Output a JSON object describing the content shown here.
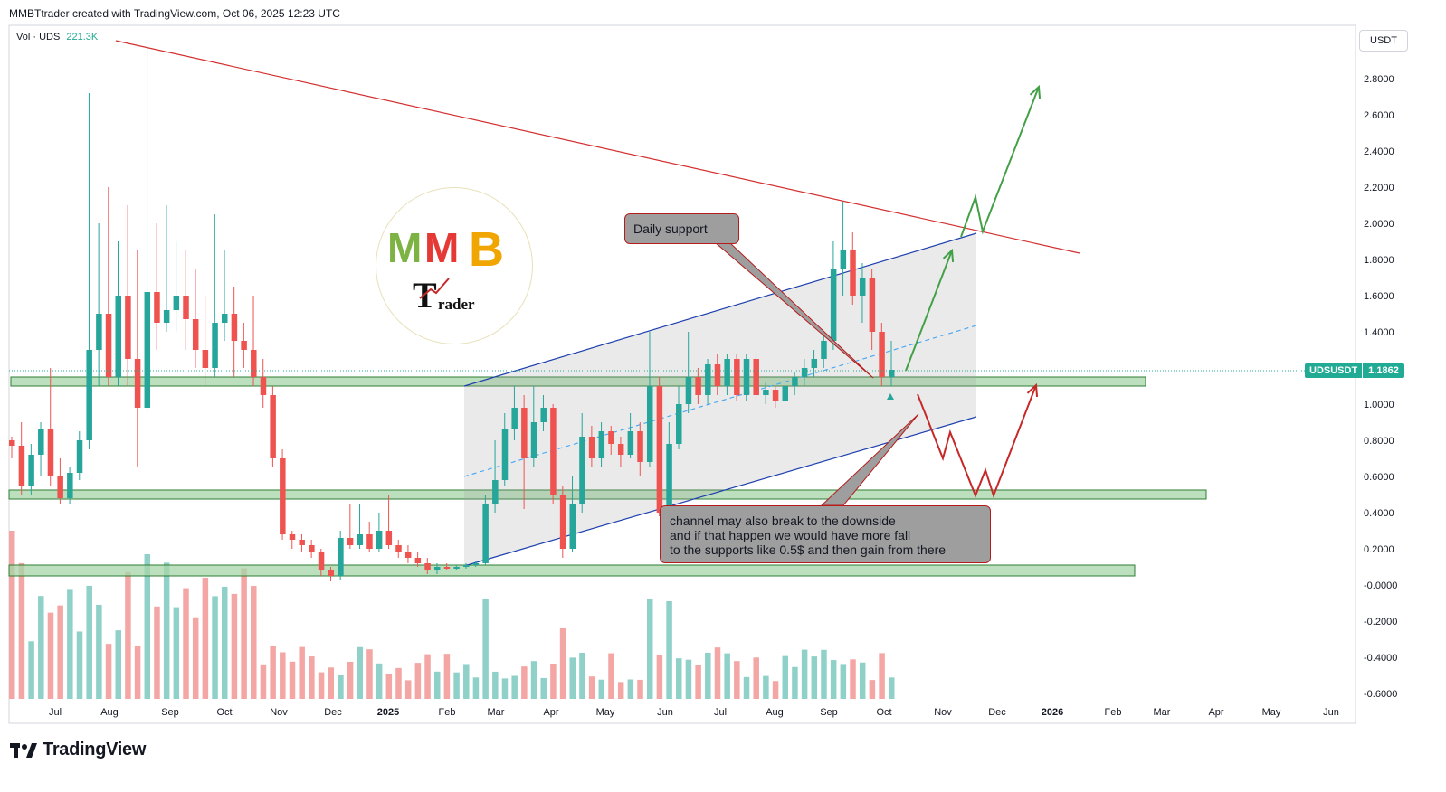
{
  "header": {
    "text": "MMBTtrader created with TradingView.com, Oct 06, 2025 12:23 UTC"
  },
  "volume_legend": {
    "name": "Vol · UDS",
    "value": "221.3K"
  },
  "currency": "USDT",
  "price_tag": {
    "symbol": "UDSUSDT",
    "value": "1.1862"
  },
  "annotations": {
    "daily_support": "Daily support",
    "channel_note": "channel may also break to the downside\nand if that happen we would have more fall\nto the supports like 0.5$ and then gain from there"
  },
  "logo": {
    "letters": "MMB",
    "trader_text": "rader",
    "trader_initial": "T"
  },
  "footer": {
    "brand": "TradingView"
  },
  "colors": {
    "up": "#26a69a",
    "down": "#ef5350",
    "up_vol": "#8fd1c9",
    "down_vol": "#f3a6a4",
    "zone_fill": "#a5d6a7",
    "zone_stroke": "#2e7d32",
    "trendline_red": "#d32f2f",
    "channel_blue": "#1e40af",
    "arrow_green": "#43a047",
    "arrow_red": "#c62828",
    "price_line": "#22ab94"
  },
  "chart_data": {
    "type": "candlestick",
    "symbol": "UDSUSDT",
    "timeframe": "weekly (approx.)",
    "y_axis": {
      "ticks": [
        "2.8000",
        "2.6000",
        "2.4000",
        "2.2000",
        "2.0000",
        "1.8000",
        "1.6000",
        "1.4000",
        "1.2000",
        "1.0000",
        "0.8000",
        "0.6000",
        "0.4000",
        "0.2000",
        "-0.0000",
        "-0.2000",
        "-0.4000",
        "-0.6000"
      ],
      "ylim": [
        -0.65,
        2.95
      ]
    },
    "x_axis": {
      "ticks": [
        "Jul",
        "Aug",
        "Sep",
        "Oct",
        "Nov",
        "Dec",
        "2025",
        "Feb",
        "Mar",
        "Apr",
        "May",
        "Jun",
        "Jul",
        "Aug",
        "Sep",
        "Oct",
        "Nov",
        "Dec",
        "2026",
        "Feb",
        "Mar",
        "Apr",
        "May",
        "Jun"
      ],
      "bold_ticks": [
        "2025",
        "2026"
      ]
    },
    "last_price": 1.1862,
    "candles_approx": [
      [
        0.8,
        0.77,
        0.82,
        0.7
      ],
      [
        0.77,
        0.55,
        0.9,
        0.5
      ],
      [
        0.55,
        0.72,
        0.78,
        0.5
      ],
      [
        0.72,
        0.86,
        0.9,
        0.6
      ],
      [
        0.86,
        0.6,
        1.2,
        0.55
      ],
      [
        0.6,
        0.48,
        0.7,
        0.45
      ],
      [
        0.48,
        0.62,
        0.65,
        0.45
      ],
      [
        0.62,
        0.8,
        0.85,
        0.58
      ],
      [
        0.8,
        1.3,
        2.72,
        0.75
      ],
      [
        1.3,
        1.5,
        2.0,
        1.1
      ],
      [
        1.5,
        1.15,
        2.2,
        1.1
      ],
      [
        1.15,
        1.6,
        1.9,
        1.1
      ],
      [
        1.6,
        1.25,
        2.1,
        1.1
      ],
      [
        1.25,
        0.98,
        1.85,
        0.65
      ],
      [
        0.98,
        1.62,
        2.98,
        0.95
      ],
      [
        1.62,
        1.45,
        2.0,
        1.3
      ],
      [
        1.45,
        1.52,
        2.1,
        1.4
      ],
      [
        1.52,
        1.6,
        1.9,
        1.4
      ],
      [
        1.6,
        1.47,
        1.85,
        1.3
      ],
      [
        1.47,
        1.3,
        1.75,
        1.2
      ],
      [
        1.3,
        1.2,
        1.6,
        1.1
      ],
      [
        1.2,
        1.45,
        2.05,
        1.15
      ],
      [
        1.45,
        1.5,
        1.85,
        1.35
      ],
      [
        1.5,
        1.35,
        1.65,
        1.15
      ],
      [
        1.35,
        1.3,
        1.45,
        1.2
      ],
      [
        1.3,
        1.15,
        1.6,
        1.1
      ],
      [
        1.15,
        1.05,
        1.25,
        0.98
      ],
      [
        1.05,
        0.7,
        1.1,
        0.65
      ],
      [
        0.7,
        0.28,
        0.75,
        0.25
      ],
      [
        0.28,
        0.25,
        0.3,
        0.2
      ],
      [
        0.25,
        0.22,
        0.28,
        0.18
      ],
      [
        0.22,
        0.18,
        0.25,
        0.15
      ],
      [
        0.18,
        0.08,
        0.2,
        0.05
      ],
      [
        0.08,
        0.05,
        0.1,
        0.02
      ],
      [
        0.05,
        0.26,
        0.3,
        0.03
      ],
      [
        0.26,
        0.22,
        0.45,
        0.2
      ],
      [
        0.22,
        0.28,
        0.45,
        0.2
      ],
      [
        0.28,
        0.2,
        0.35,
        0.18
      ],
      [
        0.2,
        0.3,
        0.4,
        0.18
      ],
      [
        0.3,
        0.22,
        0.5,
        0.2
      ],
      [
        0.22,
        0.18,
        0.25,
        0.15
      ],
      [
        0.18,
        0.15,
        0.22,
        0.12
      ],
      [
        0.15,
        0.12,
        0.18,
        0.1
      ],
      [
        0.12,
        0.08,
        0.15,
        0.06
      ],
      [
        0.08,
        0.1,
        0.12,
        0.06
      ],
      [
        0.1,
        0.09,
        0.12,
        0.08
      ],
      [
        0.09,
        0.1,
        0.11,
        0.08
      ],
      [
        0.1,
        0.11,
        0.12,
        0.09
      ],
      [
        0.11,
        0.12,
        0.13,
        0.1
      ],
      [
        0.12,
        0.45,
        0.5,
        0.11
      ],
      [
        0.45,
        0.58,
        0.8,
        0.4
      ],
      [
        0.58,
        0.86,
        0.95,
        0.55
      ],
      [
        0.86,
        0.98,
        1.1,
        0.8
      ],
      [
        0.98,
        0.7,
        1.05,
        0.42
      ],
      [
        0.7,
        0.9,
        1.1,
        0.65
      ],
      [
        0.9,
        0.98,
        1.05,
        0.85
      ],
      [
        0.98,
        0.5,
        1.0,
        0.45
      ],
      [
        0.5,
        0.2,
        0.55,
        0.15
      ],
      [
        0.2,
        0.45,
        0.6,
        0.18
      ],
      [
        0.45,
        0.82,
        0.95,
        0.4
      ],
      [
        0.82,
        0.7,
        0.88,
        0.65
      ],
      [
        0.7,
        0.85,
        0.9,
        0.65
      ],
      [
        0.85,
        0.78,
        0.88,
        0.72
      ],
      [
        0.78,
        0.72,
        0.82,
        0.65
      ],
      [
        0.72,
        0.85,
        0.95,
        0.7
      ],
      [
        0.85,
        0.68,
        0.9,
        0.6
      ],
      [
        0.68,
        1.1,
        1.4,
        0.65
      ],
      [
        1.1,
        0.4,
        1.15,
        0.38
      ],
      [
        0.4,
        0.78,
        0.9,
        0.38
      ],
      [
        0.78,
        1.0,
        1.1,
        0.75
      ],
      [
        1.0,
        1.15,
        1.4,
        0.95
      ],
      [
        1.15,
        1.05,
        1.2,
        1.0
      ],
      [
        1.05,
        1.22,
        1.25,
        1.0
      ],
      [
        1.22,
        1.1,
        1.28,
        1.05
      ],
      [
        1.1,
        1.25,
        1.28,
        1.05
      ],
      [
        1.25,
        1.05,
        1.28,
        1.02
      ],
      [
        1.05,
        1.25,
        1.28,
        1.02
      ],
      [
        1.25,
        1.05,
        1.28,
        1.02
      ],
      [
        1.05,
        1.08,
        1.12,
        1.0
      ],
      [
        1.08,
        1.02,
        1.1,
        0.98
      ],
      [
        1.02,
        1.1,
        1.12,
        0.92
      ],
      [
        1.1,
        1.15,
        1.18,
        1.05
      ],
      [
        1.15,
        1.2,
        1.25,
        1.1
      ],
      [
        1.2,
        1.25,
        1.3,
        1.15
      ],
      [
        1.25,
        1.35,
        1.4,
        1.2
      ],
      [
        1.35,
        1.75,
        1.9,
        1.3
      ],
      [
        1.75,
        1.85,
        2.12,
        1.6
      ],
      [
        1.85,
        1.6,
        1.95,
        1.55
      ],
      [
        1.6,
        1.7,
        1.78,
        1.45
      ],
      [
        1.7,
        1.4,
        1.75,
        1.3
      ],
      [
        1.4,
        1.15,
        1.45,
        1.1
      ],
      [
        1.15,
        1.19,
        1.35,
        1.1
      ]
    ]
  }
}
